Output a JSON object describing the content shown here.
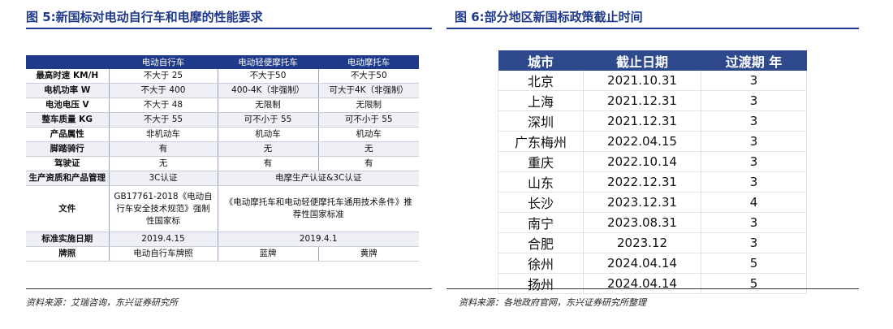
{
  "fig5": {
    "title": "图 5:新国标对电动自行车和电摩的性能要求",
    "headers": [
      "",
      "电动自行车",
      "电动轻便摩托车",
      "电动摩托车"
    ],
    "rows": [
      [
        "最高时速 KM/H",
        "不大于 25",
        "不大于50",
        "不大于50"
      ],
      [
        "电机功率 W",
        "不大于 400",
        "400-4K（非强制）",
        "可大于4K（非强制）"
      ],
      [
        "电池电压 V",
        "不大于 48",
        "无限制",
        "无限制"
      ],
      [
        "整车质量 KG",
        "不大于 55",
        "可不小于 55",
        "可不小于 55"
      ],
      [
        "产品属性",
        "非机动车",
        "机动车",
        "机动车"
      ],
      [
        "脚踏骑行",
        "有",
        "无",
        "无"
      ],
      [
        "驾驶证",
        "无",
        "有",
        "有"
      ]
    ],
    "cert_row": {
      "label": "生产资质和产品管理",
      "c1": "3C认证",
      "c2": "电摩生产认证&3C认证"
    },
    "file_row": {
      "label": "文件",
      "c1": "GB17761-2018《电动自行车安全技术规范》强制性国家标",
      "c2": "《电动摩托车和电动轻便摩托车通用技术条件》推荐性国家标准"
    },
    "date_row": {
      "label": "标准实施日期",
      "c1": "2019.4.15",
      "c2": "2019.4.1"
    },
    "plate_row": {
      "label": "牌照",
      "c1": "电动自行车牌照",
      "c2": "蓝牌",
      "c3": "黄牌"
    },
    "source": "资料来源：艾瑞咨询，东兴证券研究所"
  },
  "fig6": {
    "title": "图 6:部分地区新国标政策截止时间",
    "headers": [
      "城市",
      "截止日期",
      "过渡期 年"
    ],
    "rows": [
      [
        "北京",
        "2021.10.31",
        "3"
      ],
      [
        "上海",
        "2021.12.31",
        "3"
      ],
      [
        "深圳",
        "2021.12.31",
        "3"
      ],
      [
        "广东梅州",
        "2022.04.15",
        "3"
      ],
      [
        "重庆",
        "2022.10.14",
        "3"
      ],
      [
        "山东",
        "2022.12.31",
        "3"
      ],
      [
        "长沙",
        "2023.12.31",
        "4"
      ],
      [
        "南宁",
        "2023.08.31",
        "3"
      ],
      [
        "合肥",
        "2023.12",
        "3"
      ],
      [
        "徐州",
        "2024.04.14",
        "5"
      ],
      [
        "扬州",
        "2024.04.14",
        "5"
      ]
    ],
    "source": "资料来源：各地政府官网，东兴证券研究所整理"
  }
}
